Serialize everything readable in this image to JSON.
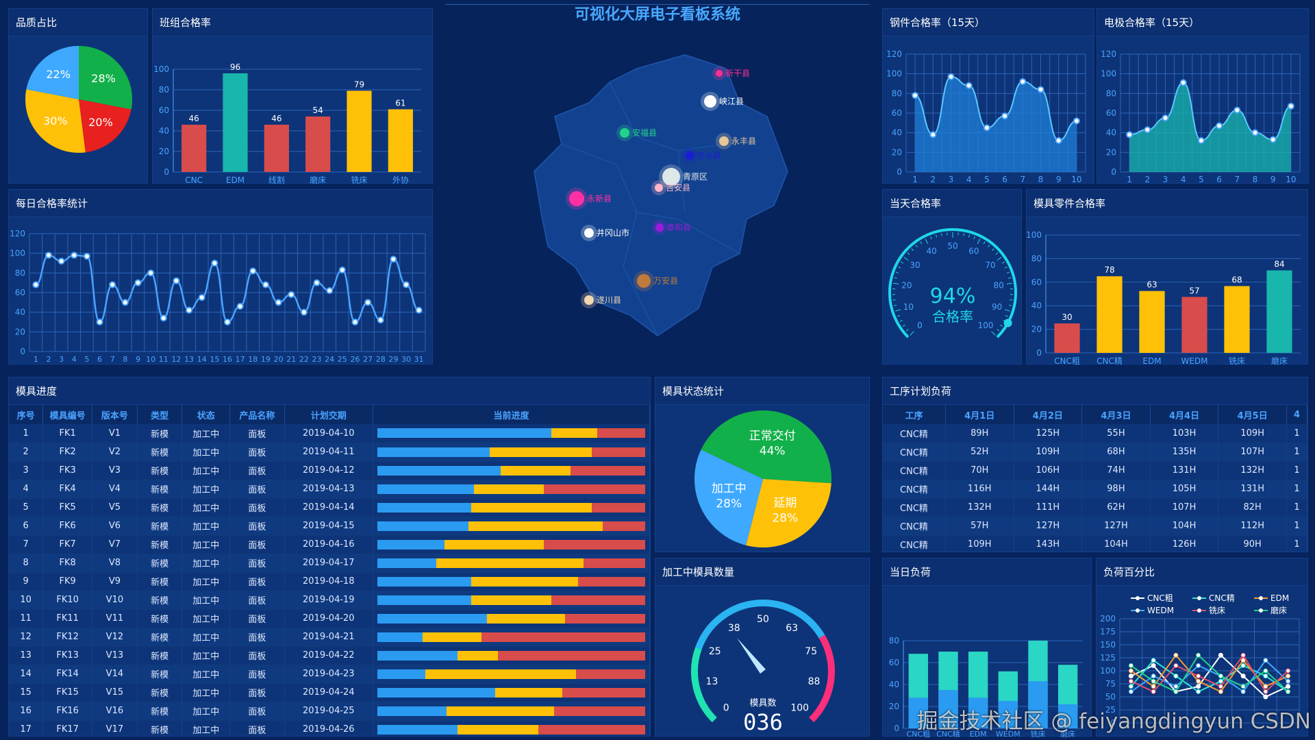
{
  "title": "可视化大屏电子看板系统",
  "watermark": "掘金技术社区 @ feiyangdingyun CSDN",
  "colors": {
    "blue": "#2b9bf2",
    "yellow": "#ffc107",
    "red": "#d84c4c",
    "green": "#12b04a",
    "teal": "#18b6ac",
    "cyan": "#20d7e8"
  },
  "panels": {
    "p1": "品质占比",
    "p2": "班组合格率",
    "p3": "每日合格率统计",
    "p4": "钢件合格率（15天）",
    "p5": "电极合格率（15天）",
    "p6": "当天合格率",
    "p7": "模具零件合格率",
    "p8": "模具进度",
    "p9": "模具状态统计",
    "p10": "加工中模具数量",
    "p11": "工序计划负荷",
    "p12": "当日负荷",
    "p13": "负荷百分比"
  },
  "pie_quality": {
    "slices": [
      {
        "label": "28%",
        "value": 28,
        "color": "#12b04a"
      },
      {
        "label": "20%",
        "value": 20,
        "color": "#e8201f"
      },
      {
        "label": "30%",
        "value": 30,
        "color": "#ffc107"
      },
      {
        "label": "22%",
        "value": 22,
        "color": "#3ea9ff"
      }
    ]
  },
  "team_bar": {
    "categories": [
      "CNC",
      "EDM",
      "线割",
      "磨床",
      "铣床",
      "外协"
    ],
    "values": [
      46,
      96,
      46,
      54,
      79,
      61
    ],
    "colors": [
      "#d84c4c",
      "#18b6ac",
      "#d84c4c",
      "#d84c4c",
      "#ffc107",
      "#ffc107"
    ],
    "yticks": [
      "0",
      "20",
      "40",
      "60",
      "80",
      "100"
    ]
  },
  "daily_line": {
    "x": [
      "1",
      "2",
      "3",
      "4",
      "5",
      "6",
      "7",
      "8",
      "9",
      "10",
      "11",
      "12",
      "13",
      "14",
      "15",
      "16",
      "17",
      "18",
      "19",
      "20",
      "21",
      "22",
      "23",
      "24",
      "25",
      "26",
      "27",
      "28",
      "29",
      "30",
      "31"
    ],
    "values": [
      68,
      98,
      92,
      98,
      97,
      30,
      68,
      50,
      70,
      80,
      34,
      72,
      42,
      55,
      90,
      30,
      46,
      82,
      68,
      50,
      58,
      40,
      70,
      62,
      83,
      30,
      50,
      32,
      94,
      68,
      42
    ],
    "yticks": [
      "0",
      "20",
      "40",
      "60",
      "80",
      "100",
      "120"
    ]
  },
  "steel_area": {
    "x": [
      "1",
      "2",
      "3",
      "4",
      "5",
      "6",
      "7",
      "8",
      "9",
      "10"
    ],
    "values": [
      78,
      38,
      97,
      88,
      45,
      57,
      92,
      84,
      32,
      52
    ],
    "yticks": [
      "0",
      "20",
      "40",
      "60",
      "80",
      "100",
      "120"
    ]
  },
  "electrode_area": {
    "x": [
      "1",
      "2",
      "3",
      "4",
      "5",
      "6",
      "7",
      "8",
      "9",
      "10"
    ],
    "values": [
      38,
      43,
      55,
      91,
      32,
      47,
      63,
      40,
      33,
      67
    ],
    "yticks": [
      "0",
      "20",
      "40",
      "60",
      "80",
      "100",
      "120"
    ]
  },
  "gauge_today": {
    "value": "94%",
    "label": "合格率",
    "ticks": [
      "0",
      "10",
      "20",
      "30",
      "40",
      "50",
      "60",
      "70",
      "80",
      "90",
      "100"
    ]
  },
  "mold_part_bar": {
    "categories": [
      "CNC粗",
      "CNC精",
      "EDM",
      "WEDM",
      "铣床",
      "磨床"
    ],
    "values": [
      30,
      78,
      63,
      57,
      68,
      84
    ],
    "colors": [
      "#d84c4c",
      "#ffc107",
      "#ffc107",
      "#d84c4c",
      "#ffc107",
      "#18b6ac"
    ],
    "yticks": [
      "0",
      "20",
      "40",
      "60",
      "80",
      "100"
    ]
  },
  "map_cities": [
    {
      "name": "新干县",
      "color": "#ff2e93"
    },
    {
      "name": "峡江县",
      "color": "#ffffff"
    },
    {
      "name": "安福县",
      "color": "#21d48a"
    },
    {
      "name": "永丰县",
      "color": "#e6c79a"
    },
    {
      "name": "吉水县",
      "color": "#1c1cd8"
    },
    {
      "name": "青原区",
      "color": "#dfe8e8"
    },
    {
      "name": "吉安县",
      "color": "#ffb6c8"
    },
    {
      "name": "永新县",
      "color": "#ff2fa6"
    },
    {
      "name": "泰和县",
      "color": "#9a1cdb"
    },
    {
      "name": "井冈山市",
      "color": "#ffffff"
    },
    {
      "name": "万安县",
      "color": "#c07a3c"
    },
    {
      "name": "遂川县",
      "color": "#f2d7b0"
    }
  ],
  "mold_progress": {
    "headers": [
      "序号",
      "模具编号",
      "版本号",
      "类型",
      "状态",
      "产品名称",
      "计划交期",
      "当前进度"
    ],
    "rows": [
      {
        "no": "1",
        "code": "FK1",
        "ver": "V1",
        "type": "新模",
        "status": "加工中",
        "product": "面板",
        "date": "2019-04-10",
        "p": [
          0.65,
          0.17,
          0.18
        ]
      },
      {
        "no": "2",
        "code": "FK2",
        "ver": "V2",
        "type": "新模",
        "status": "加工中",
        "product": "面板",
        "date": "2019-04-11",
        "p": [
          0.42,
          0.38,
          0.2
        ]
      },
      {
        "no": "3",
        "code": "FK3",
        "ver": "V3",
        "type": "新模",
        "status": "加工中",
        "product": "面板",
        "date": "2019-04-12",
        "p": [
          0.46,
          0.26,
          0.28
        ]
      },
      {
        "no": "4",
        "code": "FK4",
        "ver": "V4",
        "type": "新模",
        "status": "加工中",
        "product": "面板",
        "date": "2019-04-13",
        "p": [
          0.36,
          0.26,
          0.38
        ]
      },
      {
        "no": "5",
        "code": "FK5",
        "ver": "V5",
        "type": "新模",
        "status": "加工中",
        "product": "面板",
        "date": "2019-04-14",
        "p": [
          0.35,
          0.45,
          0.2
        ]
      },
      {
        "no": "6",
        "code": "FK6",
        "ver": "V6",
        "type": "新模",
        "status": "加工中",
        "product": "面板",
        "date": "2019-04-15",
        "p": [
          0.34,
          0.5,
          0.16
        ]
      },
      {
        "no": "7",
        "code": "FK7",
        "ver": "V7",
        "type": "新模",
        "status": "加工中",
        "product": "面板",
        "date": "2019-04-16",
        "p": [
          0.25,
          0.37,
          0.38
        ]
      },
      {
        "no": "8",
        "code": "FK8",
        "ver": "V8",
        "type": "新模",
        "status": "加工中",
        "product": "面板",
        "date": "2019-04-17",
        "p": [
          0.22,
          0.55,
          0.23
        ]
      },
      {
        "no": "9",
        "code": "FK9",
        "ver": "V9",
        "type": "新模",
        "status": "加工中",
        "product": "面板",
        "date": "2019-04-18",
        "p": [
          0.35,
          0.4,
          0.25
        ]
      },
      {
        "no": "10",
        "code": "FK10",
        "ver": "V10",
        "type": "新模",
        "status": "加工中",
        "product": "面板",
        "date": "2019-04-19",
        "p": [
          0.35,
          0.3,
          0.35
        ]
      },
      {
        "no": "11",
        "code": "FK11",
        "ver": "V11",
        "type": "新模",
        "status": "加工中",
        "product": "面板",
        "date": "2019-04-20",
        "p": [
          0.41,
          0.29,
          0.3
        ]
      },
      {
        "no": "12",
        "code": "FK12",
        "ver": "V12",
        "type": "新模",
        "status": "加工中",
        "product": "面板",
        "date": "2019-04-21",
        "p": [
          0.17,
          0.22,
          0.61
        ]
      },
      {
        "no": "13",
        "code": "FK13",
        "ver": "V13",
        "type": "新模",
        "status": "加工中",
        "product": "面板",
        "date": "2019-04-22",
        "p": [
          0.3,
          0.15,
          0.55
        ]
      },
      {
        "no": "14",
        "code": "FK14",
        "ver": "V14",
        "type": "新模",
        "status": "加工中",
        "product": "面板",
        "date": "2019-04-23",
        "p": [
          0.18,
          0.56,
          0.26
        ]
      },
      {
        "no": "15",
        "code": "FK15",
        "ver": "V15",
        "type": "新模",
        "status": "加工中",
        "product": "面板",
        "date": "2019-04-24",
        "p": [
          0.44,
          0.25,
          0.31
        ]
      },
      {
        "no": "16",
        "code": "FK16",
        "ver": "V16",
        "type": "新模",
        "status": "加工中",
        "product": "面板",
        "date": "2019-04-25",
        "p": [
          0.26,
          0.4,
          0.34
        ]
      },
      {
        "no": "17",
        "code": "FK17",
        "ver": "V17",
        "type": "新模",
        "status": "加工中",
        "product": "面板",
        "date": "2019-04-26",
        "p": [
          0.3,
          0.3,
          0.4
        ]
      }
    ]
  },
  "mold_status_pie": {
    "slices": [
      {
        "name": "正常交付",
        "pct": "44%",
        "value": 44,
        "color": "#12b04a"
      },
      {
        "name": "延期",
        "pct": "28%",
        "value": 28,
        "color": "#ffc107"
      },
      {
        "name": "加工中",
        "pct": "28%",
        "value": 28,
        "color": "#3ea9ff"
      }
    ]
  },
  "gauge_count": {
    "ticks": [
      "0",
      "13",
      "25",
      "38",
      "50",
      "63",
      "75",
      "88",
      "100"
    ],
    "label": "模具数",
    "value": "036",
    "current": 36
  },
  "process_load": {
    "headers": [
      "工序",
      "4月1日",
      "4月2日",
      "4月3日",
      "4月4日",
      "4月5日",
      "4"
    ],
    "rows": [
      [
        "CNC精",
        "89H",
        "125H",
        "55H",
        "103H",
        "109H",
        "1"
      ],
      [
        "CNC精",
        "52H",
        "109H",
        "68H",
        "135H",
        "107H",
        "1"
      ],
      [
        "CNC精",
        "70H",
        "106H",
        "74H",
        "131H",
        "132H",
        "1"
      ],
      [
        "CNC精",
        "116H",
        "144H",
        "98H",
        "105H",
        "131H",
        "1"
      ],
      [
        "CNC精",
        "132H",
        "111H",
        "62H",
        "107H",
        "82H",
        "1"
      ],
      [
        "CNC精",
        "57H",
        "127H",
        "127H",
        "104H",
        "112H",
        "1"
      ],
      [
        "CNC精",
        "109H",
        "143H",
        "104H",
        "126H",
        "90H",
        "1"
      ]
    ]
  },
  "daily_load": {
    "categories": [
      "CNC粗",
      "CNC精",
      "EDM",
      "WEDM",
      "铣床",
      "磨床"
    ],
    "top": [
      68,
      70,
      70,
      52,
      80,
      58
    ],
    "bottom": [
      28,
      35,
      28,
      25,
      43,
      22
    ],
    "yticks": [
      "0",
      "20",
      "40",
      "60",
      "80"
    ]
  },
  "load_pct": {
    "legend": [
      "CNC粗",
      "CNC精",
      "EDM",
      "WEDM",
      "铣床",
      "磨床"
    ],
    "series_colors": [
      "#ffffff",
      "#2ee6d6",
      "#ff9a2e",
      "#3ea9ff",
      "#e84c6c",
      "#21d48a"
    ],
    "yticks": [
      "0",
      "25",
      "50",
      "75",
      "100",
      "125",
      "150",
      "175",
      "200"
    ]
  }
}
